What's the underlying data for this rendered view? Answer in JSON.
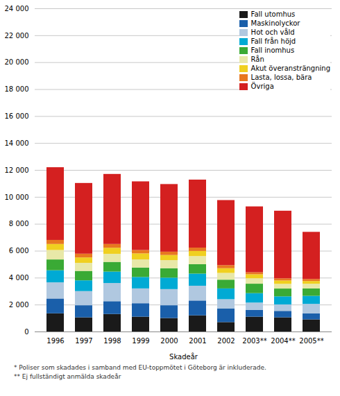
{
  "chart_data": {
    "type": "bar",
    "stacked": true,
    "xlabel": "Skadeår",
    "categories": [
      "1996",
      "1997",
      "1998",
      "1999",
      "2000",
      "2001",
      "2002",
      "2003**",
      "2004**",
      "2005**"
    ],
    "series": [
      {
        "name": "Fall utomhus",
        "color": "#1a1a1a",
        "values": [
          1350,
          1050,
          1300,
          1100,
          1000,
          1200,
          700,
          1100,
          1050,
          900
        ]
      },
      {
        "name": "Maskinolyckor",
        "color": "#1a5faa",
        "values": [
          1100,
          900,
          950,
          1000,
          950,
          1100,
          1000,
          500,
          480,
          450
        ]
      },
      {
        "name": "Hot och våld",
        "color": "#b0c8e0",
        "values": [
          1200,
          1050,
          1350,
          1100,
          1200,
          1100,
          700,
          550,
          480,
          700
        ]
      },
      {
        "name": "Fall från höjd",
        "color": "#00aad4",
        "values": [
          900,
          800,
          850,
          850,
          850,
          900,
          800,
          700,
          600,
          600
        ]
      },
      {
        "name": "Fall inomhus",
        "color": "#3aaa35",
        "values": [
          800,
          700,
          720,
          700,
          700,
          700,
          650,
          700,
          580,
          550
        ]
      },
      {
        "name": "Rån",
        "color": "#e8e8a8",
        "values": [
          700,
          600,
          600,
          600,
          600,
          600,
          500,
          400,
          350,
          350
        ]
      },
      {
        "name": "Akut överansträngning",
        "color": "#f0d020",
        "values": [
          450,
          400,
          450,
          450,
          380,
          380,
          350,
          300,
          250,
          200
        ]
      },
      {
        "name": "Lasta, lossa, bära",
        "color": "#e87820",
        "values": [
          300,
          280,
          280,
          250,
          250,
          250,
          230,
          150,
          160,
          150
        ]
      },
      {
        "name": "Övriga",
        "color": "#d42020",
        "values": [
          5400,
          5250,
          5200,
          5100,
          5020,
          5050,
          4830,
          4890,
          5020,
          3500
        ]
      }
    ],
    "ylim": [
      0,
      24000
    ],
    "yticks": [
      0,
      {
        "value": 2000,
        "label": "2 000"
      },
      {
        "value": 4000,
        "label": "4 000"
      },
      {
        "value": 6000,
        "label": "6 000"
      },
      {
        "value": 8000,
        "label": "8 000"
      },
      {
        "value": 10000,
        "label": "10 000"
      },
      {
        "value": 12000,
        "label": "12 000"
      },
      {
        "value": 14000,
        "label": "14 000"
      },
      {
        "value": 16000,
        "label": "16 000"
      },
      {
        "value": 18000,
        "label": "18 000"
      },
      {
        "value": 20000,
        "label": "20 000"
      },
      {
        "value": 22000,
        "label": "22 000"
      },
      {
        "value": 24000,
        "label": "24 000"
      }
    ],
    "grid": true,
    "legend": "upper right",
    "annotations": [
      "* Poliser som skadades i samband med EU-toppmötet i Göteborg är inkluderade.",
      "** Ej fullständigt anmälda skadeår"
    ]
  }
}
